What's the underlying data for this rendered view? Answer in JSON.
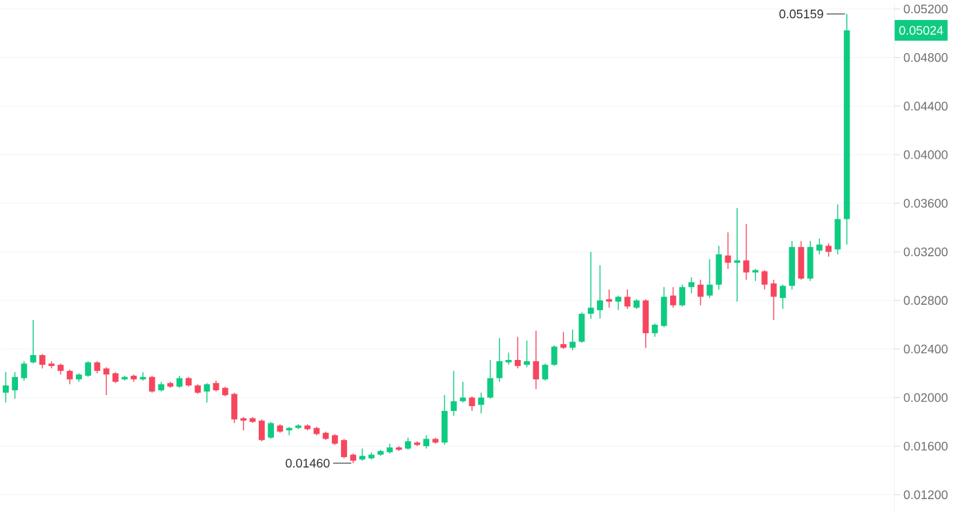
{
  "chart_data": {
    "type": "candlestick",
    "categories": [
      null,
      null,
      null,
      null,
      null,
      null,
      null,
      null,
      null,
      null,
      null,
      null,
      null,
      null,
      null,
      null,
      null,
      null,
      null,
      null,
      null,
      null,
      null,
      null,
      null,
      null,
      null,
      null,
      null,
      null,
      null,
      null,
      null,
      null,
      null,
      null,
      null,
      null,
      null,
      null,
      null,
      null,
      null,
      null,
      null,
      null,
      null,
      null,
      null,
      null,
      null,
      null,
      null,
      null,
      null,
      null,
      null,
      null,
      null,
      null,
      null,
      null,
      null,
      null,
      null,
      null,
      null,
      null,
      null,
      null,
      null,
      null,
      null,
      null,
      null,
      null,
      null,
      null,
      null,
      null,
      null,
      null,
      null,
      null,
      null,
      null,
      null,
      null,
      null,
      null,
      null,
      null,
      null
    ],
    "ohlc": [
      [
        0.0204,
        0.0221,
        0.0196,
        0.021
      ],
      [
        0.0206,
        0.0221,
        0.0199,
        0.0217
      ],
      [
        0.0216,
        0.023,
        0.0214,
        0.0228
      ],
      [
        0.0229,
        0.0264,
        0.0228,
        0.0235
      ],
      [
        0.0235,
        0.0236,
        0.0224,
        0.0227
      ],
      [
        0.0228,
        0.023,
        0.0224,
        0.0226
      ],
      [
        0.0227,
        0.0228,
        0.0219,
        0.0222
      ],
      [
        0.0222,
        0.0223,
        0.0211,
        0.0215
      ],
      [
        0.0215,
        0.022,
        0.0213,
        0.0219
      ],
      [
        0.0218,
        0.023,
        0.0217,
        0.0229
      ],
      [
        0.0229,
        0.023,
        0.022,
        0.0222
      ],
      [
        0.0224,
        0.0225,
        0.0202,
        0.0219
      ],
      [
        0.022,
        0.0221,
        0.0212,
        0.0213
      ],
      [
        0.0215,
        0.0218,
        0.0214,
        0.0217
      ],
      [
        0.0218,
        0.0219,
        0.0213,
        0.0215
      ],
      [
        0.0215,
        0.0221,
        0.0214,
        0.0217
      ],
      [
        0.0217,
        0.0218,
        0.0204,
        0.0205
      ],
      [
        0.0206,
        0.0213,
        0.0205,
        0.0211
      ],
      [
        0.0212,
        0.0213,
        0.0208,
        0.0209
      ],
      [
        0.0209,
        0.0218,
        0.0208,
        0.0216
      ],
      [
        0.0216,
        0.0217,
        0.0209,
        0.021
      ],
      [
        0.021,
        0.0211,
        0.0203,
        0.0204
      ],
      [
        0.0205,
        0.0212,
        0.0196,
        0.0211
      ],
      [
        0.0212,
        0.0214,
        0.0205,
        0.0206
      ],
      [
        0.0208,
        0.0209,
        0.0201,
        0.0202
      ],
      [
        0.0203,
        0.0204,
        0.0179,
        0.0182
      ],
      [
        0.0183,
        0.0184,
        0.0173,
        0.0181
      ],
      [
        0.0183,
        0.0184,
        0.0179,
        0.018
      ],
      [
        0.0181,
        0.0182,
        0.0164,
        0.0165
      ],
      [
        0.0167,
        0.018,
        0.0166,
        0.0179
      ],
      [
        0.0177,
        0.0178,
        0.0171,
        0.0172
      ],
      [
        0.0173,
        0.0176,
        0.0169,
        0.0175
      ],
      [
        0.0175,
        0.0178,
        0.0174,
        0.0177
      ],
      [
        0.0177,
        0.0178,
        0.0173,
        0.0174
      ],
      [
        0.0175,
        0.0176,
        0.0169,
        0.017
      ],
      [
        0.0171,
        0.0172,
        0.0165,
        0.0166
      ],
      [
        0.0169,
        0.017,
        0.0161,
        0.0162
      ],
      [
        0.0165,
        0.0166,
        0.015,
        0.0151
      ],
      [
        0.0153,
        0.0154,
        0.0146,
        0.0148
      ],
      [
        0.0149,
        0.0158,
        0.0148,
        0.0152
      ],
      [
        0.015,
        0.0155,
        0.0149,
        0.0153
      ],
      [
        0.0153,
        0.0157,
        0.0152,
        0.0156
      ],
      [
        0.0155,
        0.0162,
        0.0154,
        0.0159
      ],
      [
        0.0159,
        0.016,
        0.0156,
        0.0157
      ],
      [
        0.0158,
        0.0167,
        0.0157,
        0.0164
      ],
      [
        0.0163,
        0.0164,
        0.016,
        0.0161
      ],
      [
        0.016,
        0.0169,
        0.0158,
        0.0166
      ],
      [
        0.0166,
        0.0167,
        0.0162,
        0.0163
      ],
      [
        0.0163,
        0.0202,
        0.0161,
        0.0189
      ],
      [
        0.0189,
        0.0222,
        0.0185,
        0.0197
      ],
      [
        0.0197,
        0.0213,
        0.0196,
        0.02
      ],
      [
        0.02,
        0.0201,
        0.0189,
        0.0193
      ],
      [
        0.0194,
        0.0204,
        0.0187,
        0.02
      ],
      [
        0.02,
        0.0231,
        0.0199,
        0.0216
      ],
      [
        0.0216,
        0.0249,
        0.0213,
        0.023
      ],
      [
        0.0229,
        0.0237,
        0.0227,
        0.0231
      ],
      [
        0.0231,
        0.025,
        0.0224,
        0.0226
      ],
      [
        0.0227,
        0.0247,
        0.0225,
        0.023
      ],
      [
        0.023,
        0.0255,
        0.0207,
        0.0215
      ],
      [
        0.0215,
        0.0228,
        0.0214,
        0.0227
      ],
      [
        0.0227,
        0.0243,
        0.0226,
        0.0242
      ],
      [
        0.0244,
        0.0254,
        0.024,
        0.0241
      ],
      [
        0.0241,
        0.0256,
        0.0239,
        0.0246
      ],
      [
        0.0246,
        0.027,
        0.0245,
        0.0269
      ],
      [
        0.0269,
        0.032,
        0.0265,
        0.0274
      ],
      [
        0.0272,
        0.0309,
        0.0265,
        0.028
      ],
      [
        0.0281,
        0.0289,
        0.0274,
        0.0279
      ],
      [
        0.0279,
        0.0284,
        0.0272,
        0.0283
      ],
      [
        0.0283,
        0.0289,
        0.0273,
        0.0275
      ],
      [
        0.0274,
        0.0281,
        0.0273,
        0.028
      ],
      [
        0.028,
        0.0281,
        0.0241,
        0.0253
      ],
      [
        0.0253,
        0.0261,
        0.025,
        0.026
      ],
      [
        0.0259,
        0.0291,
        0.0258,
        0.0283
      ],
      [
        0.0284,
        0.0291,
        0.0274,
        0.0276
      ],
      [
        0.0276,
        0.0293,
        0.0275,
        0.0291
      ],
      [
        0.0291,
        0.0299,
        0.0286,
        0.0295
      ],
      [
        0.0293,
        0.0297,
        0.0276,
        0.0283
      ],
      [
        0.0284,
        0.0314,
        0.0282,
        0.0293
      ],
      [
        0.0293,
        0.0325,
        0.0289,
        0.0318
      ],
      [
        0.0317,
        0.0336,
        0.0306,
        0.0311
      ],
      [
        0.0311,
        0.0356,
        0.0279,
        0.0313
      ],
      [
        0.0313,
        0.0343,
        0.0297,
        0.0303
      ],
      [
        0.0303,
        0.0306,
        0.0296,
        0.0305
      ],
      [
        0.0304,
        0.0305,
        0.0289,
        0.0293
      ],
      [
        0.0294,
        0.0297,
        0.0264,
        0.0283
      ],
      [
        0.0282,
        0.0293,
        0.0273,
        0.0292
      ],
      [
        0.0292,
        0.0329,
        0.0289,
        0.0324
      ],
      [
        0.0324,
        0.0329,
        0.0297,
        0.0298
      ],
      [
        0.0298,
        0.0329,
        0.0296,
        0.0324
      ],
      [
        0.0321,
        0.0331,
        0.0318,
        0.0326
      ],
      [
        0.0325,
        0.0327,
        0.0316,
        0.032
      ],
      [
        0.0322,
        0.0359,
        0.0318,
        0.0347
      ],
      [
        0.0347,
        0.05159,
        0.0326,
        0.05024
      ]
    ],
    "colors": [
      "#0ecb81",
      "#0ecb81",
      "#0ecb81",
      "#0ecb81",
      "#f6465d",
      "#f6465d",
      "#f6465d",
      "#f6465d",
      "#0ecb81",
      "#0ecb81",
      "#f6465d",
      "#f6465d",
      "#f6465d",
      "#0ecb81",
      "#f6465d",
      "#0ecb81",
      "#f6465d",
      "#0ecb81",
      "#f6465d",
      "#0ecb81",
      "#f6465d",
      "#f6465d",
      "#0ecb81",
      "#f6465d",
      "#f6465d",
      "#f6465d",
      "#f6465d",
      "#f6465d",
      "#f6465d",
      "#0ecb81",
      "#f6465d",
      "#0ecb81",
      "#0ecb81",
      "#f6465d",
      "#f6465d",
      "#f6465d",
      "#f6465d",
      "#f6465d",
      "#f6465d",
      "#0ecb81",
      "#0ecb81",
      "#0ecb81",
      "#0ecb81",
      "#f6465d",
      "#0ecb81",
      "#f6465d",
      "#0ecb81",
      "#f6465d",
      "#0ecb81",
      "#0ecb81",
      "#0ecb81",
      "#f6465d",
      "#0ecb81",
      "#0ecb81",
      "#0ecb81",
      "#0ecb81",
      "#f6465d",
      "#0ecb81",
      "#f6465d",
      "#0ecb81",
      "#0ecb81",
      "#f6465d",
      "#0ecb81",
      "#0ecb81",
      "#0ecb81",
      "#0ecb81",
      "#f6465d",
      "#0ecb81",
      "#f6465d",
      "#0ecb81",
      "#f6465d",
      "#0ecb81",
      "#0ecb81",
      "#f6465d",
      "#0ecb81",
      "#0ecb81",
      "#f6465d",
      "#0ecb81",
      "#0ecb81",
      "#f6465d",
      "#0ecb81",
      "#f6465d",
      "#0ecb81",
      "#f6465d",
      "#f6465d",
      "#0ecb81",
      "#0ecb81",
      "#f6465d",
      "#0ecb81",
      "#0ecb81",
      "#f6465d",
      "#0ecb81",
      "#0ecb81"
    ],
    "ylim": [
      0.0105,
      0.0525
    ],
    "yticks": [
      {
        "value": 0.012,
        "label": "0.01200"
      },
      {
        "value": 0.016,
        "label": "0.01600"
      },
      {
        "value": 0.02,
        "label": "0.02000"
      },
      {
        "value": 0.024,
        "label": "0.02400"
      },
      {
        "value": 0.028,
        "label": "0.02800"
      },
      {
        "value": 0.032,
        "label": "0.03200"
      },
      {
        "value": 0.036,
        "label": "0.03600"
      },
      {
        "value": 0.04,
        "label": "0.04000"
      },
      {
        "value": 0.044,
        "label": "0.04400"
      },
      {
        "value": 0.048,
        "label": "0.04800"
      },
      {
        "value": 0.052,
        "label": "0.05200"
      }
    ],
    "tick_labels": "y",
    "grid": "y",
    "annotations": [
      "0.05159",
      "0.01460",
      "0.05024"
    ]
  }
}
